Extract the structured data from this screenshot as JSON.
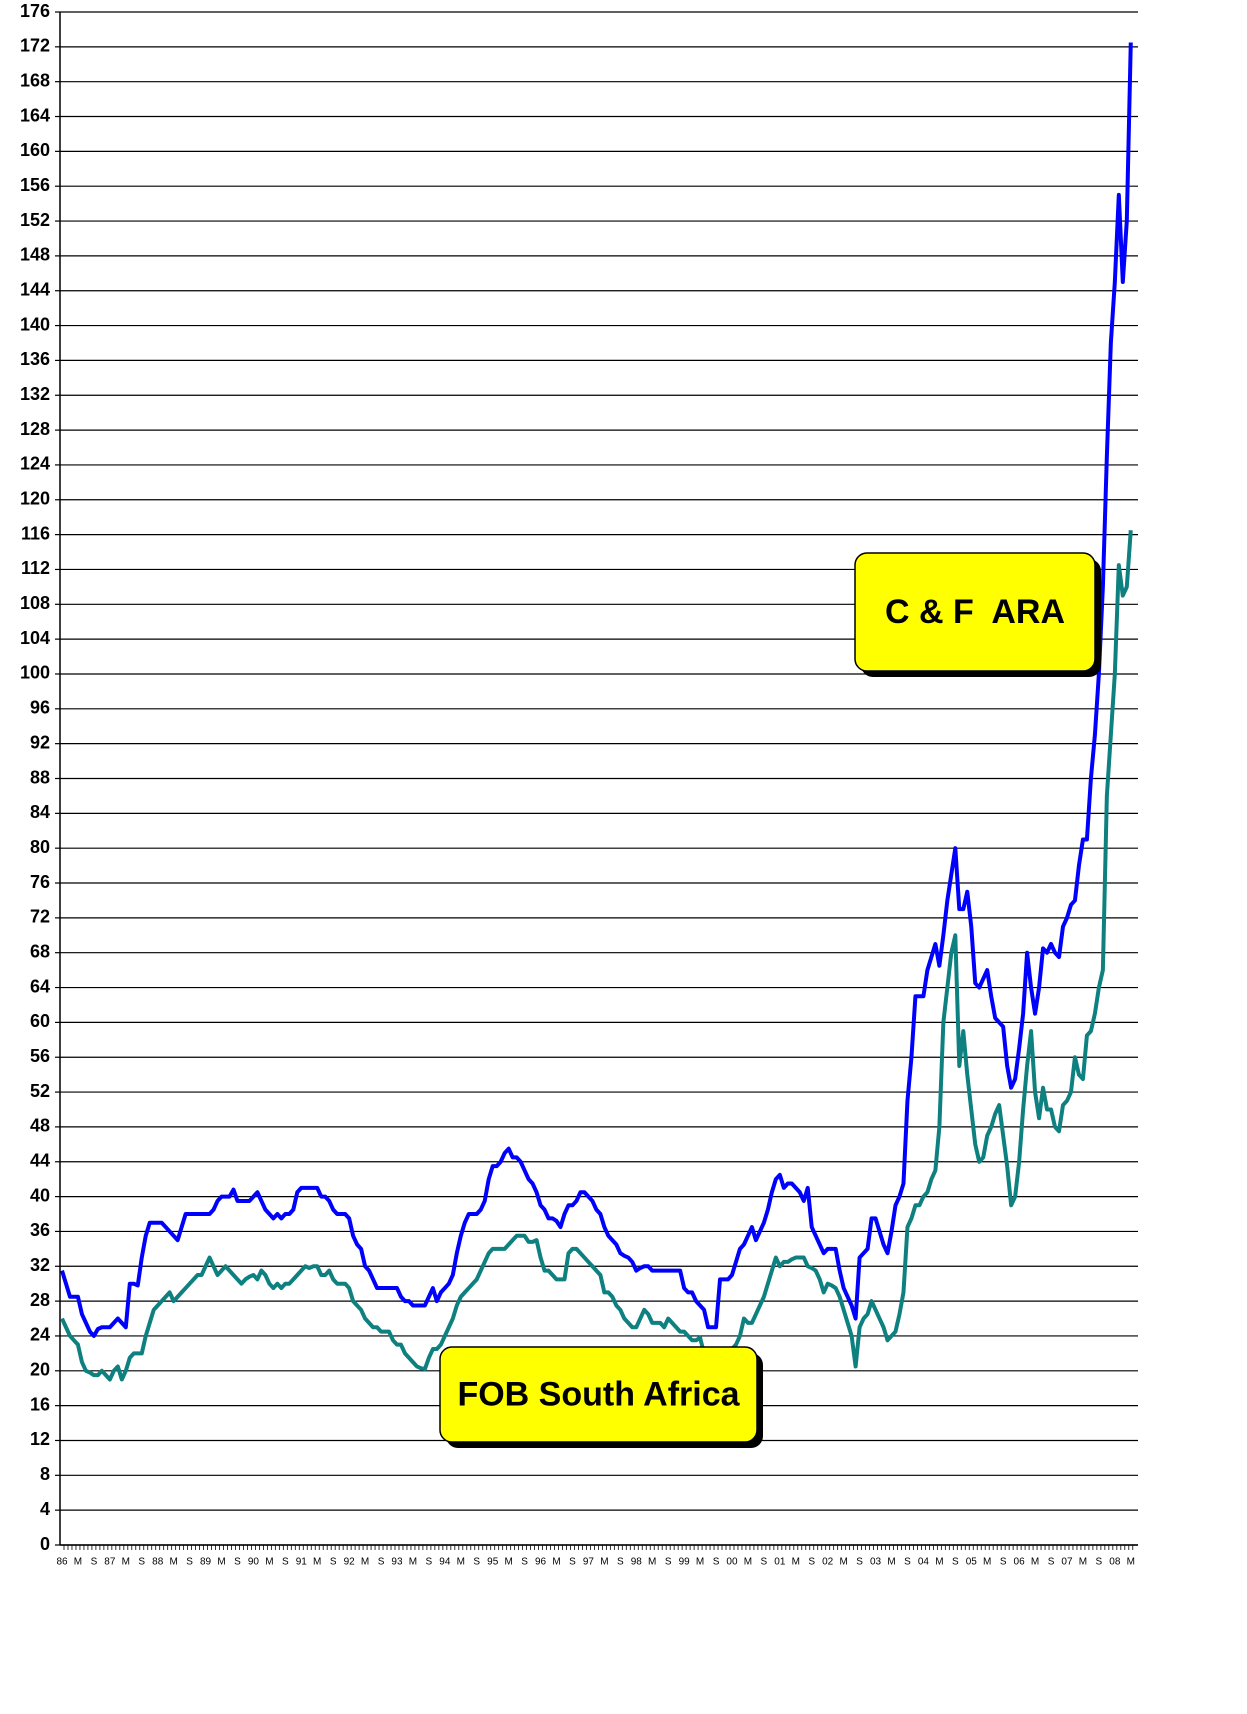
{
  "chart_data": {
    "type": "line",
    "categories": [
      "86",
      null,
      null,
      null,
      "M",
      null,
      null,
      null,
      "S",
      null,
      null,
      null,
      "87",
      null,
      null,
      null,
      "M",
      null,
      null,
      null,
      "S",
      null,
      null,
      null,
      "88",
      null,
      null,
      null,
      "M",
      null,
      null,
      null,
      "S",
      null,
      null,
      null,
      "89",
      null,
      null,
      null,
      "M",
      null,
      null,
      null,
      "S",
      null,
      null,
      null,
      "90",
      null,
      null,
      null,
      "M",
      null,
      null,
      null,
      "S",
      null,
      null,
      null,
      "91",
      null,
      null,
      null,
      "M",
      null,
      null,
      null,
      "S",
      null,
      null,
      null,
      "92",
      null,
      null,
      null,
      "M",
      null,
      null,
      null,
      "S",
      null,
      null,
      null,
      "93",
      null,
      null,
      null,
      "M",
      null,
      null,
      null,
      "S",
      null,
      null,
      null,
      "94",
      null,
      null,
      null,
      "M",
      null,
      null,
      null,
      "S",
      null,
      null,
      null,
      "95",
      null,
      null,
      null,
      "M",
      null,
      null,
      null,
      "S",
      null,
      null,
      null,
      "96",
      null,
      null,
      null,
      "M",
      null,
      null,
      null,
      "S",
      null,
      null,
      null,
      "97",
      null,
      null,
      null,
      "M",
      null,
      null,
      null,
      "S",
      null,
      null,
      null,
      "98",
      null,
      null,
      null,
      "M",
      null,
      null,
      null,
      "S",
      null,
      null,
      null,
      "99",
      null,
      null,
      null,
      "M",
      null,
      null,
      null,
      "S",
      null,
      null,
      null,
      "00",
      null,
      null,
      null,
      "M",
      null,
      null,
      null,
      "S",
      null,
      null,
      null,
      "01",
      null,
      null,
      null,
      "M",
      null,
      null,
      null,
      "S",
      null,
      null,
      null,
      "02",
      null,
      null,
      null,
      "M",
      null,
      null,
      null,
      "S",
      null,
      null,
      null,
      "03",
      null,
      null,
      null,
      "M",
      null,
      null,
      null,
      "S",
      null,
      null,
      null,
      "04",
      null,
      null,
      null,
      "M",
      null,
      null,
      null,
      "S",
      null,
      null,
      null,
      "05",
      null,
      null,
      null,
      "M",
      null,
      null,
      null,
      "S",
      null,
      null,
      null,
      "06",
      null,
      null,
      null,
      "M",
      null,
      null,
      null,
      "S",
      null,
      null,
      null,
      "07",
      null,
      null,
      null,
      "M",
      null,
      null,
      null,
      "S",
      null,
      null,
      null,
      "08",
      null,
      null,
      null,
      "M"
    ],
    "series": [
      {
        "name": "C & F  ARA",
        "color": "#0000ff",
        "values": [
          31.5,
          30,
          28.5,
          28.5,
          28.5,
          26.5,
          25.5,
          24.5,
          24,
          24.8,
          25,
          25,
          25,
          25.5,
          26,
          25.5,
          25,
          30,
          30,
          29.8,
          33,
          35.5,
          37,
          37,
          37,
          37,
          36.5,
          36,
          35.5,
          35,
          36.5,
          38,
          38,
          38,
          38,
          38,
          38,
          38,
          38.5,
          39.5,
          40,
          40,
          40,
          40.8,
          39.5,
          39.5,
          39.5,
          39.5,
          40,
          40.5,
          39.5,
          38.5,
          38,
          37.5,
          38,
          37.5,
          38,
          38,
          38.5,
          40.5,
          41,
          41,
          41,
          41,
          41,
          40,
          40,
          39.5,
          38.5,
          38,
          38,
          38,
          37.5,
          35.5,
          34.5,
          34,
          32,
          31.5,
          30.5,
          29.5,
          29.5,
          29.5,
          29.5,
          29.5,
          29.5,
          28.5,
          28,
          28,
          27.5,
          27.5,
          27.5,
          27.5,
          28.5,
          29.5,
          28,
          29,
          29.5,
          30,
          31,
          33.5,
          35.5,
          37,
          38,
          38,
          38,
          38.5,
          39.5,
          42,
          43.5,
          43.5,
          44,
          45,
          45.5,
          44.5,
          44.5,
          44,
          43,
          42,
          41.5,
          40.5,
          39,
          38.5,
          37.5,
          37.5,
          37.2,
          36.5,
          38,
          39,
          39,
          39.5,
          40.5,
          40.5,
          40,
          39.5,
          38.5,
          38,
          36.5,
          35.5,
          35,
          34.5,
          33.5,
          33.2,
          33,
          32.5,
          31.5,
          31.8,
          32,
          32,
          31.5,
          31.5,
          31.5,
          31.5,
          31.5,
          31.5,
          31.5,
          31.5,
          29.5,
          29,
          29,
          28,
          27.5,
          27,
          25,
          25,
          25,
          30.5,
          30.5,
          30.5,
          31,
          32.5,
          34,
          34.5,
          35.5,
          36.5,
          35,
          36,
          37,
          38.5,
          40.5,
          42,
          42.5,
          41,
          41.5,
          41.5,
          41,
          40.5,
          39.5,
          41,
          36.5,
          35.5,
          34.5,
          33.5,
          34,
          34,
          34,
          31.5,
          29.5,
          28.5,
          27.5,
          26,
          33,
          33.5,
          34,
          37.5,
          37.5,
          36,
          34.5,
          33.5,
          36,
          39,
          40,
          41.5,
          51,
          56,
          63,
          63,
          63,
          66,
          67.5,
          69,
          66.5,
          70,
          74,
          77,
          80,
          73,
          73,
          75,
          71,
          64.5,
          64,
          65,
          66,
          63,
          60.5,
          60,
          59.5,
          55,
          52.5,
          53.5,
          57,
          61,
          68,
          64,
          61,
          64,
          68.5,
          68,
          69,
          68,
          67.5,
          71,
          72,
          73.5,
          74,
          78,
          81,
          81,
          88,
          93,
          100,
          110,
          125,
          138,
          145,
          155,
          145,
          152,
          172.5
        ]
      },
      {
        "name": "FOB South Africa",
        "color": "#0e8080",
        "values": [
          26,
          25,
          24,
          23.5,
          23,
          21,
          20,
          19.8,
          19.5,
          19.5,
          20,
          19.5,
          19,
          20,
          20.5,
          19,
          20,
          21.5,
          22,
          22,
          22,
          24,
          25.5,
          27,
          27.5,
          28,
          28.5,
          29,
          28,
          28.5,
          29,
          29.5,
          30,
          30.5,
          31,
          31,
          32,
          33,
          32,
          31,
          31.5,
          32,
          31.5,
          31,
          30.5,
          30,
          30.5,
          30.8,
          31,
          30.5,
          31.5,
          31,
          30,
          29.5,
          30,
          29.5,
          30,
          30,
          30.5,
          31,
          31.5,
          32,
          31.8,
          32,
          32,
          31,
          31,
          31.5,
          30.5,
          30,
          30,
          30,
          29.5,
          28,
          27.5,
          27,
          26,
          25.5,
          25,
          25,
          24.5,
          24.5,
          24.5,
          23.5,
          23,
          23,
          22,
          21.5,
          21,
          20.5,
          20.3,
          20.2,
          21.5,
          22.5,
          22.5,
          23,
          24,
          25,
          26,
          27.5,
          28.5,
          29,
          29.5,
          30,
          30.5,
          31.5,
          32.5,
          33.5,
          34,
          34,
          34,
          34,
          34.5,
          35,
          35.5,
          35.5,
          35.5,
          34.8,
          34.8,
          35,
          33,
          31.5,
          31.5,
          31,
          30.5,
          30.5,
          30.5,
          33.5,
          34,
          34,
          33.5,
          33,
          32.5,
          32,
          31.5,
          31,
          29,
          29,
          28.5,
          27.5,
          27,
          26,
          25.5,
          25,
          25,
          26,
          27,
          26.5,
          25.5,
          25.5,
          25.5,
          25,
          26,
          25.5,
          25,
          24.5,
          24.5,
          24,
          23.5,
          23.5,
          23.8,
          22,
          22,
          22,
          22,
          22,
          22,
          22.5,
          22.5,
          23,
          24,
          26,
          25.5,
          25.5,
          26.5,
          27.5,
          28.5,
          30,
          31.5,
          33,
          32,
          32.5,
          32.5,
          32.8,
          33,
          33,
          33,
          32,
          31.8,
          31.5,
          30.5,
          29,
          30,
          29.8,
          29.5,
          28.5,
          27,
          25.5,
          24,
          20.5,
          25,
          26,
          26.5,
          28,
          27,
          26,
          25,
          23.5,
          24,
          24.5,
          26.5,
          29,
          36.5,
          37.5,
          39,
          39,
          40,
          40.5,
          42,
          43,
          48,
          60,
          64,
          68,
          70,
          55,
          59,
          54,
          50,
          46,
          44,
          44.5,
          47,
          48,
          49.5,
          50.5,
          47,
          43.5,
          39,
          40,
          44,
          50,
          55,
          59,
          52,
          49,
          52.5,
          50,
          50,
          48,
          47.5,
          50.5,
          51,
          52,
          56,
          54,
          53.5,
          58.5,
          59,
          61,
          64,
          66,
          86,
          93,
          100,
          112.5,
          109,
          110,
          116.5
        ]
      }
    ],
    "ylim": [
      0,
      176
    ],
    "yticks": [
      0,
      4,
      8,
      12,
      16,
      20,
      24,
      28,
      32,
      36,
      40,
      44,
      48,
      52,
      56,
      60,
      64,
      68,
      72,
      76,
      80,
      84,
      88,
      92,
      96,
      100,
      104,
      108,
      112,
      116,
      120,
      124,
      128,
      132,
      136,
      140,
      144,
      148,
      152,
      156,
      160,
      164,
      168,
      172,
      176
    ],
    "grid": true
  }
}
